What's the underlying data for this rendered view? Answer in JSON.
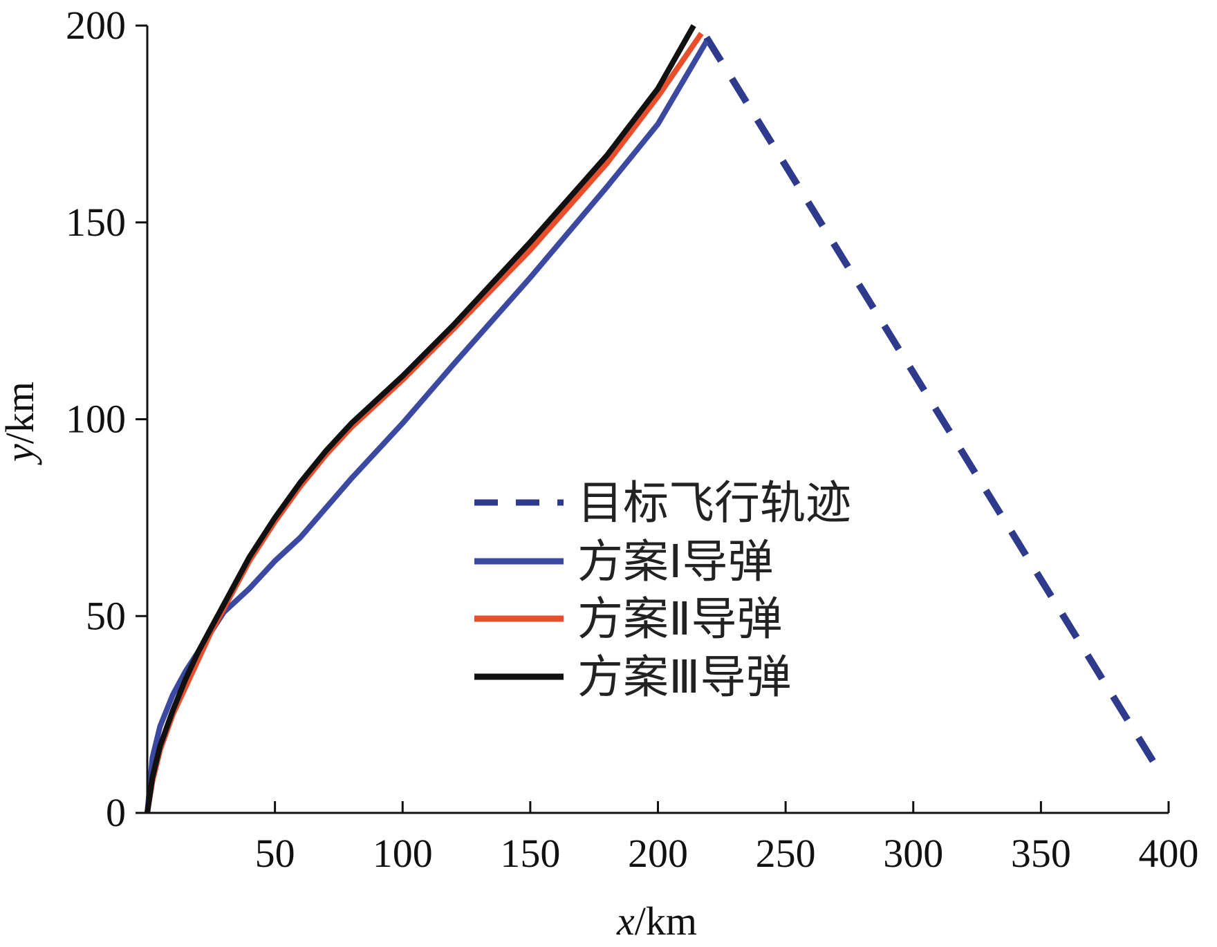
{
  "chart_data": {
    "type": "line",
    "xlabel_var": "x",
    "xlabel_unit": "/km",
    "ylabel_var": "y",
    "ylabel_unit": "/km",
    "xlim": [
      0,
      400
    ],
    "ylim": [
      0,
      200
    ],
    "xticks": [
      50,
      100,
      150,
      200,
      250,
      300,
      350,
      400
    ],
    "yticks": [
      0,
      50,
      100,
      150,
      200
    ],
    "grid": false,
    "legend_position": "center-right",
    "series": [
      {
        "name": "目标飞行轨迹",
        "style": "dashed",
        "color": "#2e3a8c",
        "x": [
          219,
          395
        ],
        "y": [
          197,
          12
        ]
      },
      {
        "name": "方案Ⅰ导弹",
        "style": "solid",
        "color": "#3b4aa0",
        "x": [
          0,
          2,
          5,
          10,
          15,
          20,
          25,
          30,
          40,
          50,
          60,
          80,
          100,
          120,
          150,
          180,
          200,
          219
        ],
        "y": [
          0,
          14,
          22,
          30,
          36,
          41,
          46,
          51,
          57,
          64,
          70,
          85,
          99,
          114,
          136,
          159,
          175,
          196
        ]
      },
      {
        "name": "方案Ⅱ导弹",
        "style": "solid",
        "color": "#e84e2c",
        "x": [
          0,
          2,
          5,
          10,
          15,
          20,
          25,
          30,
          40,
          50,
          60,
          70,
          80,
          100,
          120,
          150,
          180,
          200,
          217
        ],
        "y": [
          0,
          8,
          16,
          25,
          32,
          39,
          46,
          52,
          64,
          74,
          83,
          91,
          98,
          110,
          123,
          143,
          165,
          182,
          198
        ]
      },
      {
        "name": "方案Ⅲ导弹",
        "style": "solid",
        "color": "#111111",
        "x": [
          0,
          2,
          5,
          10,
          15,
          20,
          25,
          30,
          40,
          50,
          60,
          70,
          80,
          100,
          120,
          150,
          180,
          200,
          214
        ],
        "y": [
          0,
          9,
          17,
          26,
          34,
          41,
          47,
          53,
          65,
          75,
          84,
          92,
          99,
          111,
          124,
          145,
          167,
          184,
          200
        ]
      }
    ]
  }
}
